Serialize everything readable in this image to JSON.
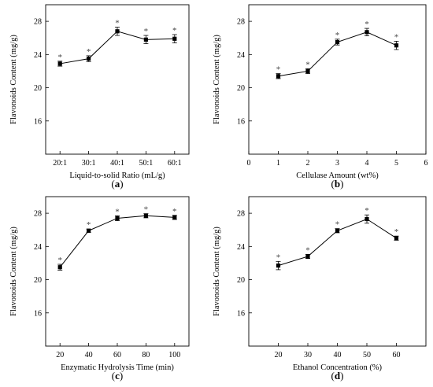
{
  "chart_data": [
    {
      "type": "line",
      "panel": "(a)",
      "panel_letter": "a",
      "ylabel": "Flavonoids Content (mg/g)",
      "xlabel": "Liquid-to-solid Ratio (mL/g)",
      "x_axis": "categorical",
      "categories": [
        "20:1",
        "30:1",
        "40:1",
        "50:1",
        "60:1"
      ],
      "values": [
        22.9,
        23.5,
        26.8,
        25.8,
        25.9
      ],
      "error": [
        0.3,
        0.35,
        0.5,
        0.5,
        0.5
      ],
      "significance": [
        "*",
        "*",
        "*",
        "*",
        "*"
      ],
      "ylim": [
        12,
        30
      ],
      "yticks": [
        16,
        20,
        24,
        28
      ],
      "grid": false
    },
    {
      "type": "line",
      "panel": "(b)",
      "panel_letter": "b",
      "ylabel": "Flavonoids Content (mg/g)",
      "xlabel": "Cellulase Amount (wt%)",
      "x_axis": "numeric",
      "xlim": [
        0,
        6
      ],
      "xticks": [
        0,
        1,
        2,
        3,
        4,
        5,
        6
      ],
      "x": [
        1,
        2,
        3,
        4,
        5
      ],
      "values": [
        21.4,
        22.0,
        25.5,
        26.7,
        25.1
      ],
      "error": [
        0.3,
        0.3,
        0.35,
        0.45,
        0.5
      ],
      "significance": [
        "*",
        "*",
        "*",
        "*",
        "*"
      ],
      "ylim": [
        12,
        30
      ],
      "yticks": [
        16,
        20,
        24,
        28
      ],
      "grid": false
    },
    {
      "type": "line",
      "panel": "(c)",
      "panel_letter": "c",
      "ylabel": "Flavonoids Content (mg/g)",
      "xlabel": "Enzymatic Hydrolysis Time (min)",
      "x_axis": "numeric",
      "xlim": [
        10,
        110
      ],
      "xticks": [
        20,
        40,
        60,
        80,
        100
      ],
      "x": [
        20,
        40,
        60,
        80,
        100
      ],
      "values": [
        21.5,
        25.9,
        27.4,
        27.7,
        27.5
      ],
      "error": [
        0.35,
        0.2,
        0.3,
        0.25,
        0.25
      ],
      "significance": [
        "*",
        "*",
        "*",
        "*",
        "*"
      ],
      "ylim": [
        12,
        30
      ],
      "yticks": [
        16,
        20,
        24,
        28
      ],
      "grid": false
    },
    {
      "type": "line",
      "panel": "(d)",
      "panel_letter": "d",
      "ylabel": "Flavonoids Content (mg/g)",
      "xlabel": "Ethanol Concentration (%)",
      "x_axis": "numeric",
      "xlim": [
        10,
        70
      ],
      "xticks": [
        20,
        30,
        40,
        50,
        60
      ],
      "x": [
        20,
        30,
        40,
        50,
        60
      ],
      "values": [
        21.7,
        22.8,
        25.9,
        27.3,
        25.0
      ],
      "error": [
        0.5,
        0.25,
        0.25,
        0.5,
        0.25
      ],
      "significance": [
        "*",
        "*",
        "*",
        "*",
        "*"
      ],
      "ylim": [
        12,
        30
      ],
      "yticks": [
        16,
        20,
        24,
        28
      ],
      "grid": false
    }
  ]
}
